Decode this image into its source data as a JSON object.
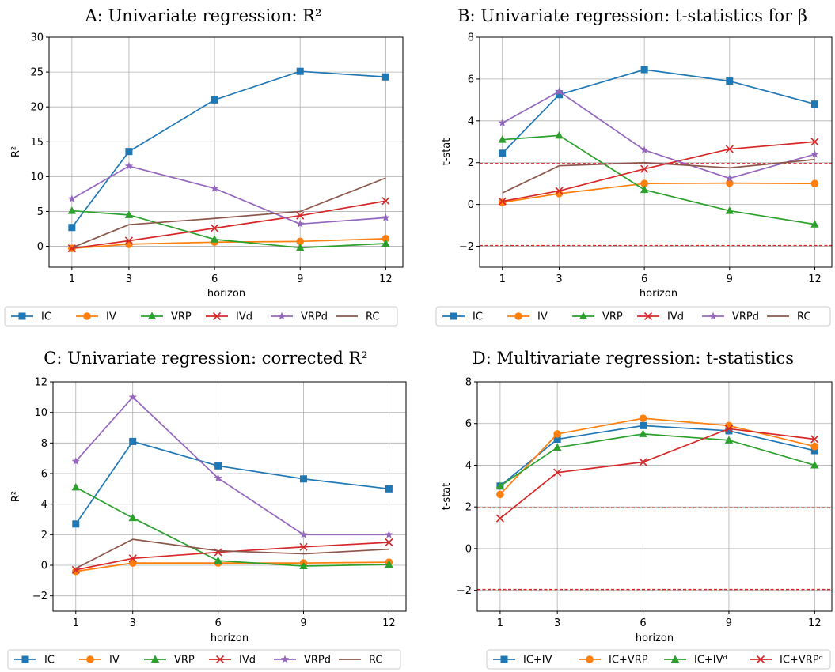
{
  "chart_data": [
    {
      "id": "A",
      "type": "line",
      "title": "A: Univariate regression: R²",
      "xlabel": "horizon",
      "ylabel": "R²",
      "x": [
        1,
        3,
        6,
        9,
        12
      ],
      "xlim": [
        0.2,
        12.6
      ],
      "ylim": [
        -3,
        30
      ],
      "yticks": [
        0,
        5,
        10,
        15,
        20,
        25,
        30
      ],
      "grid": true,
      "legend": "bottom",
      "hlines": [],
      "series": [
        {
          "name": "IC",
          "color": "#1f77b4",
          "marker": "square",
          "values": [
            2.7,
            13.6,
            21.0,
            25.1,
            24.3
          ]
        },
        {
          "name": "IV",
          "color": "#ff7f0e",
          "marker": "circle",
          "values": [
            -0.3,
            0.3,
            0.6,
            0.7,
            1.1
          ]
        },
        {
          "name": "VRP",
          "color": "#2ca02c",
          "marker": "triangle",
          "values": [
            5.1,
            4.5,
            1.0,
            -0.2,
            0.4
          ]
        },
        {
          "name": "IVd",
          "color": "#d62728",
          "marker": "x",
          "values": [
            -0.3,
            0.8,
            2.6,
            4.4,
            6.5
          ]
        },
        {
          "name": "VRPd",
          "color": "#9467bd",
          "marker": "star",
          "values": [
            6.8,
            11.5,
            8.3,
            3.2,
            4.1
          ]
        },
        {
          "name": "RC",
          "color": "#8c564b",
          "marker": "none",
          "values": [
            -0.2,
            3.1,
            4.0,
            5.0,
            9.8
          ]
        }
      ]
    },
    {
      "id": "B",
      "type": "line",
      "title": "B: Univariate regression: t-statistics for β",
      "xlabel": "horizon",
      "ylabel": "t-stat",
      "x": [
        1,
        3,
        6,
        9,
        12
      ],
      "xlim": [
        0.2,
        12.6
      ],
      "ylim": [
        -3,
        8
      ],
      "yticks": [
        -2,
        0,
        2,
        4,
        6,
        8
      ],
      "grid": true,
      "legend": "bottom",
      "hlines": [
        1.96,
        -1.96
      ],
      "series": [
        {
          "name": "IC",
          "color": "#1f77b4",
          "marker": "square",
          "values": [
            2.45,
            5.25,
            6.45,
            5.9,
            4.8
          ]
        },
        {
          "name": "IV",
          "color": "#ff7f0e",
          "marker": "circle",
          "values": [
            0.1,
            0.52,
            1.0,
            1.02,
            1.0
          ]
        },
        {
          "name": "VRP",
          "color": "#2ca02c",
          "marker": "triangle",
          "values": [
            3.1,
            3.3,
            0.7,
            -0.3,
            -0.95
          ]
        },
        {
          "name": "IVd",
          "color": "#d62728",
          "marker": "x",
          "values": [
            0.15,
            0.65,
            1.7,
            2.65,
            3.0
          ]
        },
        {
          "name": "VRPd",
          "color": "#9467bd",
          "marker": "star",
          "values": [
            3.9,
            5.4,
            2.6,
            1.25,
            2.4
          ]
        },
        {
          "name": "RC",
          "color": "#8c564b",
          "marker": "none",
          "values": [
            0.55,
            1.85,
            2.0,
            1.75,
            2.15
          ]
        }
      ]
    },
    {
      "id": "C",
      "type": "line",
      "title": "C: Univariate regression: corrected R²",
      "xlabel": "horizon",
      "ylabel": "R²",
      "x": [
        1,
        3,
        6,
        9,
        12
      ],
      "xlim": [
        0.2,
        12.6
      ],
      "ylim": [
        -3,
        12
      ],
      "yticks": [
        -2,
        0,
        2,
        4,
        6,
        8,
        10,
        12
      ],
      "grid": true,
      "legend": "bottom",
      "hlines": [],
      "series": [
        {
          "name": "IC",
          "color": "#1f77b4",
          "marker": "square",
          "values": [
            2.7,
            8.1,
            6.5,
            5.65,
            5.0
          ]
        },
        {
          "name": "IV",
          "color": "#ff7f0e",
          "marker": "circle",
          "values": [
            -0.4,
            0.15,
            0.15,
            0.15,
            0.2
          ]
        },
        {
          "name": "VRP",
          "color": "#2ca02c",
          "marker": "triangle",
          "values": [
            5.1,
            3.1,
            0.3,
            -0.05,
            0.05
          ]
        },
        {
          "name": "IVd",
          "color": "#d62728",
          "marker": "x",
          "values": [
            -0.3,
            0.45,
            0.85,
            1.2,
            1.5
          ]
        },
        {
          "name": "VRPd",
          "color": "#9467bd",
          "marker": "star",
          "values": [
            6.8,
            11.0,
            5.7,
            2.0,
            2.0
          ]
        },
        {
          "name": "RC",
          "color": "#8c564b",
          "marker": "none",
          "values": [
            -0.2,
            1.7,
            0.95,
            0.75,
            1.05
          ]
        }
      ]
    },
    {
      "id": "D",
      "type": "line",
      "title": "D: Multivariate regression: t-statistics",
      "xlabel": "horizon",
      "ylabel": "t-stat",
      "x": [
        1,
        3,
        6,
        9,
        12
      ],
      "xlim": [
        0.2,
        12.6
      ],
      "ylim": [
        -3,
        8
      ],
      "yticks": [
        -2,
        0,
        2,
        4,
        6,
        8
      ],
      "grid": true,
      "legend": "bottom",
      "hlines": [
        1.96,
        -1.96
      ],
      "series": [
        {
          "name": "IC+IV",
          "color": "#1f77b4",
          "marker": "square",
          "values": [
            3.0,
            5.25,
            5.9,
            5.65,
            4.7
          ]
        },
        {
          "name": "IC+VRP",
          "color": "#ff7f0e",
          "marker": "circle",
          "values": [
            2.6,
            5.5,
            6.25,
            5.9,
            4.9
          ]
        },
        {
          "name": "IC+IVᵈ",
          "color": "#2ca02c",
          "marker": "triangle",
          "values": [
            3.0,
            4.85,
            5.5,
            5.2,
            4.0
          ]
        },
        {
          "name": "IC+VRPᵈ",
          "color": "#d62728",
          "marker": "x",
          "values": [
            1.45,
            3.65,
            4.15,
            5.75,
            5.25
          ]
        }
      ]
    }
  ]
}
